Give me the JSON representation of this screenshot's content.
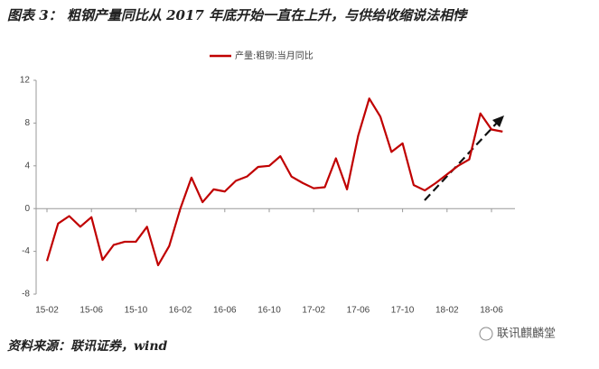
{
  "chart_data": {
    "type": "line",
    "title": "图表 3： 粗钢产量同比从 2017 年底开始一直在上升，与供给收缩说法相悖",
    "source": "资料来源：联讯证券，wind",
    "watermark": "联讯麒麟堂",
    "categories": [
      "15-02",
      null,
      null,
      null,
      "15-06",
      null,
      null,
      null,
      "15-10",
      null,
      null,
      null,
      "16-02",
      null,
      null,
      null,
      "16-06",
      null,
      null,
      null,
      "16-10",
      null,
      null,
      null,
      "17-02",
      null,
      null,
      null,
      "17-06",
      null,
      null,
      null,
      "17-10",
      null,
      null,
      null,
      "18-02",
      null,
      null,
      null,
      "18-06",
      null
    ],
    "series": [
      {
        "name": "产量:粗钢:当月同比",
        "color": "#c00000",
        "values": [
          -4.9,
          -1.4,
          -0.7,
          -1.7,
          -0.8,
          -4.8,
          -3.4,
          -3.1,
          -3.1,
          -1.7,
          -5.3,
          -3.5,
          0,
          2.9,
          0.6,
          1.8,
          1.6,
          2.6,
          3.0,
          3.9,
          4.0,
          4.9,
          3.0,
          2.4,
          1.9,
          2.0,
          4.7,
          1.8,
          6.8,
          10.3,
          8.6,
          5.3,
          6.1,
          2.2,
          1.7,
          2.4,
          3.2,
          4.0,
          4.6,
          8.9,
          7.4,
          7.2
        ]
      }
    ],
    "ylim": [
      -8,
      12
    ],
    "yticks": [
      12,
      8,
      4,
      0,
      -4,
      -8
    ],
    "grid": false
  }
}
